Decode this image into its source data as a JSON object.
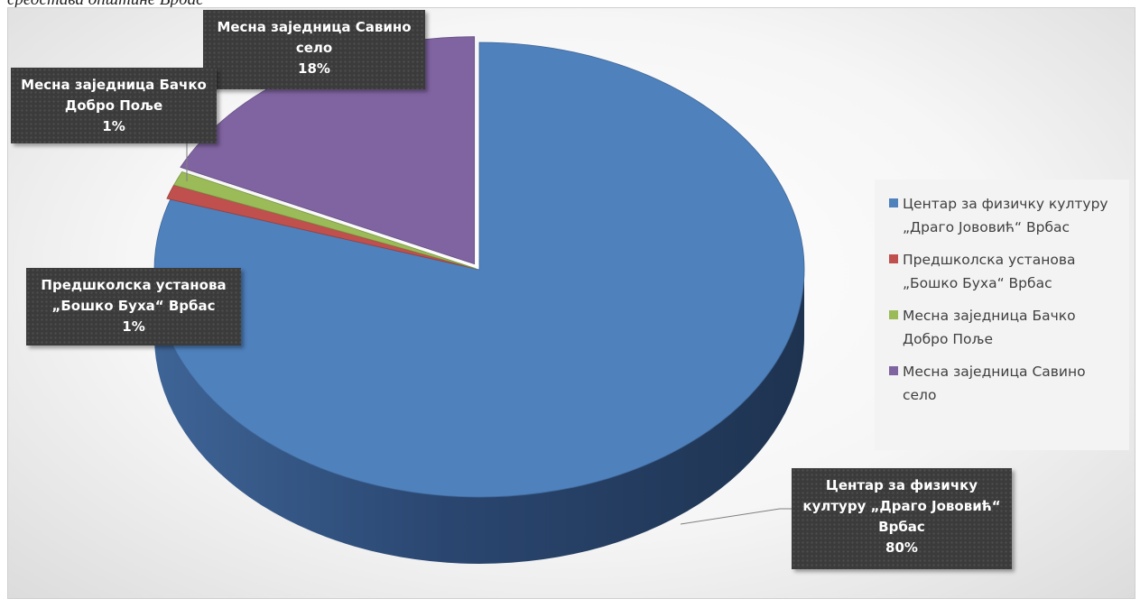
{
  "caption": "средстава општине Врбас",
  "chart_data": {
    "type": "pie",
    "title": "",
    "legend_position": "right",
    "three_d": true,
    "slices": [
      {
        "name": "Центар за физичку културу „Драго Јововић“ Врбас",
        "value": 80,
        "label": "80%",
        "color": "#4f81bd"
      },
      {
        "name": "Предшколска установа „Бошко Буха“ Врбас",
        "value": 1,
        "label": "1%",
        "color": "#c0504d"
      },
      {
        "name": "Месна заједница Бачко Добро Поље",
        "value": 1,
        "label": "1%",
        "color": "#9bbb59"
      },
      {
        "name": "Месна заједница Савино село",
        "value": 18,
        "label": "18%",
        "color": "#8064a2"
      }
    ]
  },
  "data_labels": {
    "centar": "Центар за физичку\nкултуру „Драго Јововић“\nВрбас",
    "predskolska": "Предшколска установа\n„Бошко Буха“ Врбас",
    "backo": "Месна заједница Бачко\nДобро Поље",
    "savino": "Месна заједница Савино\nсело"
  }
}
